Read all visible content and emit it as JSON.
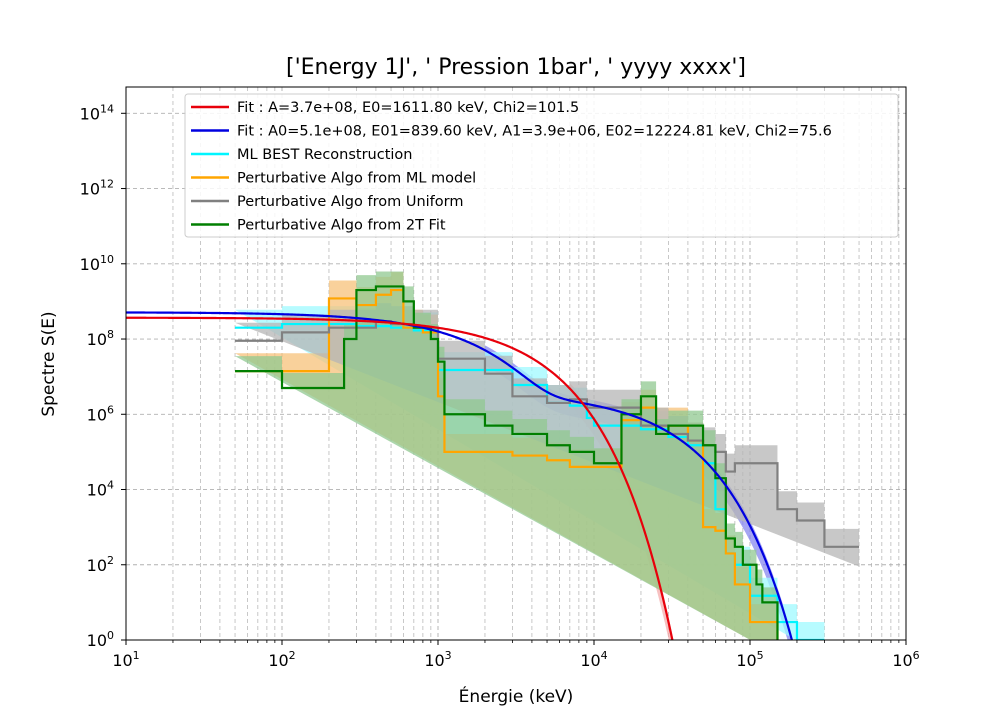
{
  "chart_data": {
    "type": "line",
    "title": "['Energy 1J', ' Pression 1bar', ' yyyy xxxx']",
    "xlabel": "Énergie (keV)",
    "ylabel": "Spectre S(E)",
    "xscale": "log",
    "yscale": "log",
    "xlim": [
      10,
      1000000
    ],
    "ylim": [
      1,
      500000000000000
    ],
    "grid": true,
    "legend_position": "top-right",
    "x_ticks": [
      {
        "base": "10",
        "exp": "1",
        "value": 10
      },
      {
        "base": "10",
        "exp": "2",
        "value": 100
      },
      {
        "base": "10",
        "exp": "3",
        "value": 1000
      },
      {
        "base": "10",
        "exp": "4",
        "value": 10000
      },
      {
        "base": "10",
        "exp": "5",
        "value": 100000
      },
      {
        "base": "10",
        "exp": "6",
        "value": 1000000
      }
    ],
    "y_ticks": [
      {
        "base": "10",
        "exp": "0",
        "value": 1
      },
      {
        "base": "10",
        "exp": "2",
        "value": 100
      },
      {
        "base": "10",
        "exp": "4",
        "value": 10000
      },
      {
        "base": "10",
        "exp": "6",
        "value": 1000000
      },
      {
        "base": "10",
        "exp": "8",
        "value": 100000000
      },
      {
        "base": "10",
        "exp": "10",
        "value": 10000000000
      },
      {
        "base": "10",
        "exp": "12",
        "value": 1000000000000
      },
      {
        "base": "10",
        "exp": "14",
        "value": 100000000000000
      }
    ],
    "series": [
      {
        "name": "Fit : A=3.7e+08, E0=1611.80 keV, Chi2=101.5",
        "color": "#e8000b",
        "kind": "fit_1T",
        "params": {
          "A": 370000000,
          "E0": 1611.8
        },
        "band": {
          "color": "#f4a6a6",
          "range": [
            7000,
            33000
          ],
          "rel": 0.4
        }
      },
      {
        "name": "Fit : A0=5.1e+08, E01=839.60 keV, A1=3.9e+06, E02=12224.81 keV, Chi2=75.6",
        "color": "#0000e0",
        "kind": "fit_2T",
        "params": {
          "A0": 510000000,
          "E01": 839.6,
          "A1": 3900000,
          "E02": 12224.81
        },
        "band": {
          "color": "#7f7fee",
          "range": [
            2000,
            190000
          ],
          "rel": 0.35
        }
      },
      {
        "name": "ML BEST Reconstruction",
        "color": "#00f5ff",
        "kind": "step",
        "points": [
          [
            50,
            200000000
          ],
          [
            100,
            250000000
          ],
          [
            200,
            250000000
          ],
          [
            300,
            220000000
          ],
          [
            500,
            200000000
          ],
          [
            700,
            170000000
          ],
          [
            1000,
            15000000
          ],
          [
            2000,
            15000000
          ],
          [
            3000,
            6000000
          ],
          [
            5000,
            2000000
          ],
          [
            7000,
            1700000
          ],
          [
            9000,
            800000
          ],
          [
            10000,
            500000
          ],
          [
            15000,
            500000
          ],
          [
            20000,
            400000
          ],
          [
            30000,
            250000
          ],
          [
            40000,
            150000
          ],
          [
            50000,
            50000
          ],
          [
            60000,
            3000
          ],
          [
            70000,
            200
          ],
          [
            80000,
            100
          ],
          [
            100000,
            15
          ],
          [
            150000,
            3
          ],
          [
            200000,
            1
          ],
          [
            300000,
            1
          ]
        ],
        "band": {
          "color": "#9ff9ff",
          "lo": 0.35,
          "hi": 3
        }
      },
      {
        "name": "Perturbative Algo from ML model",
        "color": "#ffa500",
        "kind": "step",
        "points": [
          [
            50,
            14000000
          ],
          [
            100,
            14000000
          ],
          [
            150,
            14000000
          ],
          [
            200,
            1200000000
          ],
          [
            300,
            800000000
          ],
          [
            400,
            1500000000
          ],
          [
            500,
            2000000000
          ],
          [
            600,
            200000000
          ],
          [
            800,
            150000000
          ],
          [
            1000,
            3000000
          ],
          [
            1100,
            100000
          ],
          [
            2000,
            100000
          ],
          [
            3000,
            80000
          ],
          [
            5000,
            60000
          ],
          [
            7000,
            40000
          ],
          [
            10000,
            40000
          ],
          [
            15000,
            700000
          ],
          [
            20000,
            1500000
          ],
          [
            25000,
            500000
          ],
          [
            30000,
            500000
          ],
          [
            40000,
            200000
          ],
          [
            50000,
            1000
          ],
          [
            60000,
            800
          ],
          [
            70000,
            200
          ],
          [
            80000,
            30
          ],
          [
            100000,
            3
          ],
          [
            150000,
            1
          ]
        ],
        "band": {
          "color": "#f7c27a",
          "lo": 0.4,
          "hi": 3
        }
      },
      {
        "name": "Perturbative Algo from Uniform",
        "color": "#808080",
        "kind": "step",
        "points": [
          [
            50,
            90000000
          ],
          [
            100,
            150000000
          ],
          [
            200,
            200000000
          ],
          [
            300,
            200000000
          ],
          [
            400,
            300000000
          ],
          [
            500,
            250000000
          ],
          [
            700,
            200000000
          ],
          [
            1000,
            30000000
          ],
          [
            2000,
            12000000
          ],
          [
            3000,
            3000000
          ],
          [
            5000,
            2000000
          ],
          [
            7000,
            2500000
          ],
          [
            9000,
            1500000
          ],
          [
            12000,
            1500000
          ],
          [
            20000,
            500000
          ],
          [
            30000,
            300000
          ],
          [
            40000,
            200000
          ],
          [
            50000,
            150000
          ],
          [
            60000,
            100000
          ],
          [
            70000,
            30000
          ],
          [
            80000,
            50000
          ],
          [
            90000,
            50000
          ],
          [
            100000,
            50000
          ],
          [
            150000,
            3000
          ],
          [
            200000,
            1500
          ],
          [
            300000,
            300
          ],
          [
            400000,
            300
          ],
          [
            500000,
            300
          ]
        ],
        "band": {
          "color": "#b5b5b5",
          "lo": 0.3,
          "hi": 3
        }
      },
      {
        "name": "Perturbative Algo from 2T Fit",
        "color": "#007f00",
        "kind": "step",
        "points": [
          [
            50,
            14000000
          ],
          [
            100,
            5000000
          ],
          [
            200,
            5000000
          ],
          [
            250,
            100000000
          ],
          [
            300,
            2000000000
          ],
          [
            400,
            2500000000
          ],
          [
            500,
            2500000000
          ],
          [
            600,
            1000000000
          ],
          [
            700,
            200000000
          ],
          [
            800,
            200000000
          ],
          [
            900,
            100000000
          ],
          [
            1000,
            25000000
          ],
          [
            1100,
            1000000
          ],
          [
            2000,
            500000
          ],
          [
            3000,
            300000
          ],
          [
            5000,
            150000
          ],
          [
            7000,
            100000
          ],
          [
            10000,
            50000
          ],
          [
            15000,
            1000000
          ],
          [
            20000,
            3000000
          ],
          [
            25000,
            300000
          ],
          [
            30000,
            500000
          ],
          [
            40000,
            500000
          ],
          [
            50000,
            150000
          ],
          [
            60000,
            20000
          ],
          [
            70000,
            500
          ],
          [
            80000,
            300
          ],
          [
            90000,
            100
          ],
          [
            100000,
            100
          ],
          [
            110000,
            30
          ],
          [
            120000,
            10
          ],
          [
            150000,
            1
          ]
        ],
        "band": {
          "color": "#90c890",
          "lo": 0.4,
          "hi": 2.5
        }
      }
    ]
  }
}
